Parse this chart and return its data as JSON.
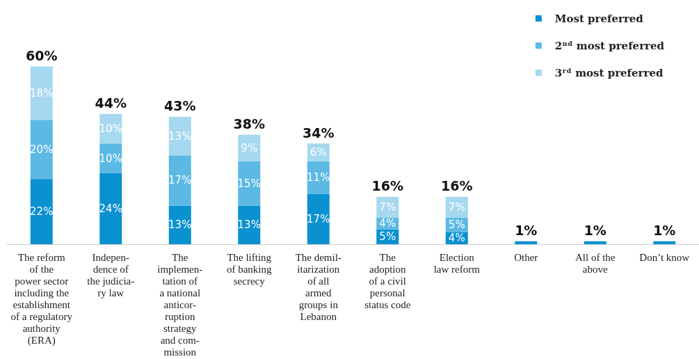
{
  "chart_data": {
    "type": "bar",
    "stacked": true,
    "legend": "top right",
    "categories": [
      "The reform\nof the\npower sector\nincluding the\nestablishment\nof a regulatory\nauthority\n(ERA)",
      "Indepen-\ndence of\nthe judicia-\nry law",
      "The\nimplemen-\ntation of\na national\nanticor-\nruption\nstrategy\nand com-\nmission",
      "The lifting\nof banking\nsecrecy",
      "The demil-\nitarization\nof all\narmed\ngroups in\nLebanon",
      "The\nadoption\nof a civil\npersonal\nstatus code",
      "Election\nlaw reform",
      "Other",
      "All of the\nabove",
      "Don’t know"
    ],
    "series": [
      {
        "name": "Most preferred",
        "color": "#0991d0",
        "values": [
          22,
          24,
          13,
          13,
          17,
          5,
          4,
          1,
          1,
          1
        ],
        "value_labels": [
          "22%",
          "24%",
          "13%",
          "13%",
          "17%",
          "5%",
          "4%",
          null,
          null,
          null
        ]
      },
      {
        "name": "2ⁿᵈ most preferred",
        "color": "#5bb9e4",
        "values": [
          20,
          10,
          17,
          15,
          11,
          4,
          5,
          null,
          null,
          null
        ],
        "value_labels": [
          "20%",
          "10%",
          "17%",
          "15%",
          "11%",
          "4%",
          "5%",
          null,
          null,
          null
        ]
      },
      {
        "name": "3ʳᵈ most preferred",
        "color": "#a6d8f0",
        "values": [
          18,
          10,
          13,
          9,
          6,
          7,
          7,
          null,
          null,
          null
        ],
        "value_labels": [
          "18%",
          "10%",
          "13%",
          "9%",
          "6%",
          "7%",
          "7%",
          null,
          null,
          null
        ]
      }
    ],
    "totals": [
      "60%",
      "44%",
      "43%",
      "38%",
      "34%",
      "16%",
      "16%",
      "1%",
      "1%",
      "1%"
    ]
  }
}
